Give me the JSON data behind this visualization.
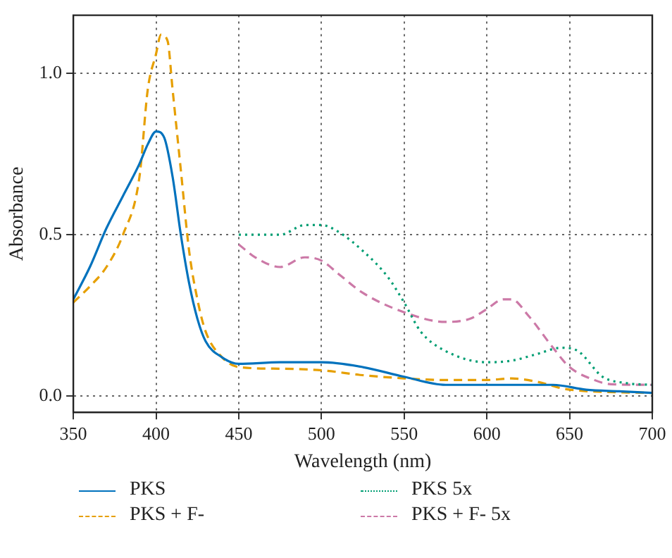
{
  "chart_data": {
    "type": "line",
    "xlabel": "Wavelength (nm)",
    "ylabel": "Absorbance",
    "xlim": [
      350,
      700
    ],
    "xticks": [
      350,
      400,
      450,
      500,
      550,
      600,
      650,
      700
    ],
    "ylim": [
      -0.05,
      1.18
    ],
    "yticks": [
      {
        "value": 0,
        "label": "0.0"
      },
      {
        "value": 0.5,
        "label": "0.5"
      },
      {
        "value": 1,
        "label": "1.0"
      }
    ],
    "grid": true,
    "legend": "bottom",
    "marker": "none",
    "series": [
      {
        "name": "PKS",
        "color": "#0072bd",
        "line_style": "solid",
        "x": [
          350,
          360,
          370,
          380,
          390,
          395,
          400,
          405,
          410,
          415,
          420,
          425,
          430,
          440,
          450,
          475,
          500,
          525,
          550,
          575,
          600,
          625,
          640,
          660,
          680,
          700
        ],
        "values": [
          0.3,
          0.4,
          0.52,
          0.62,
          0.72,
          0.78,
          0.82,
          0.8,
          0.68,
          0.5,
          0.35,
          0.24,
          0.17,
          0.12,
          0.1,
          0.105,
          0.105,
          0.09,
          0.06,
          0.035,
          0.035,
          0.035,
          0.035,
          0.02,
          0.015,
          0.01
        ]
      },
      {
        "name": "PKS + F-",
        "color": "#e69f00",
        "line_style": "dashed",
        "x": [
          350,
          360,
          370,
          380,
          390,
          395,
          400,
          403,
          407,
          410,
          415,
          420,
          425,
          430,
          440,
          450,
          475,
          500,
          525,
          550,
          575,
          600,
          615,
          630,
          650,
          700
        ],
        "values": [
          0.29,
          0.34,
          0.4,
          0.5,
          0.68,
          0.95,
          1.06,
          1.12,
          1.1,
          0.95,
          0.7,
          0.45,
          0.3,
          0.2,
          0.12,
          0.09,
          0.085,
          0.08,
          0.065,
          0.055,
          0.05,
          0.05,
          0.055,
          0.045,
          0.02,
          0.01
        ]
      },
      {
        "name": "PKS 5x",
        "color": "#009e73",
        "line_style": "dotted",
        "x": [
          450,
          475,
          490,
          500,
          510,
          525,
          540,
          550,
          560,
          575,
          600,
          615,
          630,
          645,
          655,
          670,
          685,
          700
        ],
        "values": [
          0.5,
          0.5,
          0.53,
          0.53,
          0.51,
          0.45,
          0.37,
          0.29,
          0.2,
          0.14,
          0.105,
          0.11,
          0.13,
          0.15,
          0.14,
          0.06,
          0.04,
          0.035
        ]
      },
      {
        "name": "PKS + F- 5x",
        "color": "#cc79a7",
        "line_style": "dashed",
        "x": [
          450,
          460,
          475,
          490,
          500,
          510,
          525,
          550,
          575,
          590,
          600,
          610,
          615,
          625,
          640,
          650,
          665,
          675,
          700
        ],
        "values": [
          0.47,
          0.43,
          0.4,
          0.43,
          0.42,
          0.38,
          0.32,
          0.26,
          0.23,
          0.24,
          0.27,
          0.3,
          0.3,
          0.25,
          0.15,
          0.09,
          0.05,
          0.037,
          0.035
        ]
      }
    ]
  }
}
